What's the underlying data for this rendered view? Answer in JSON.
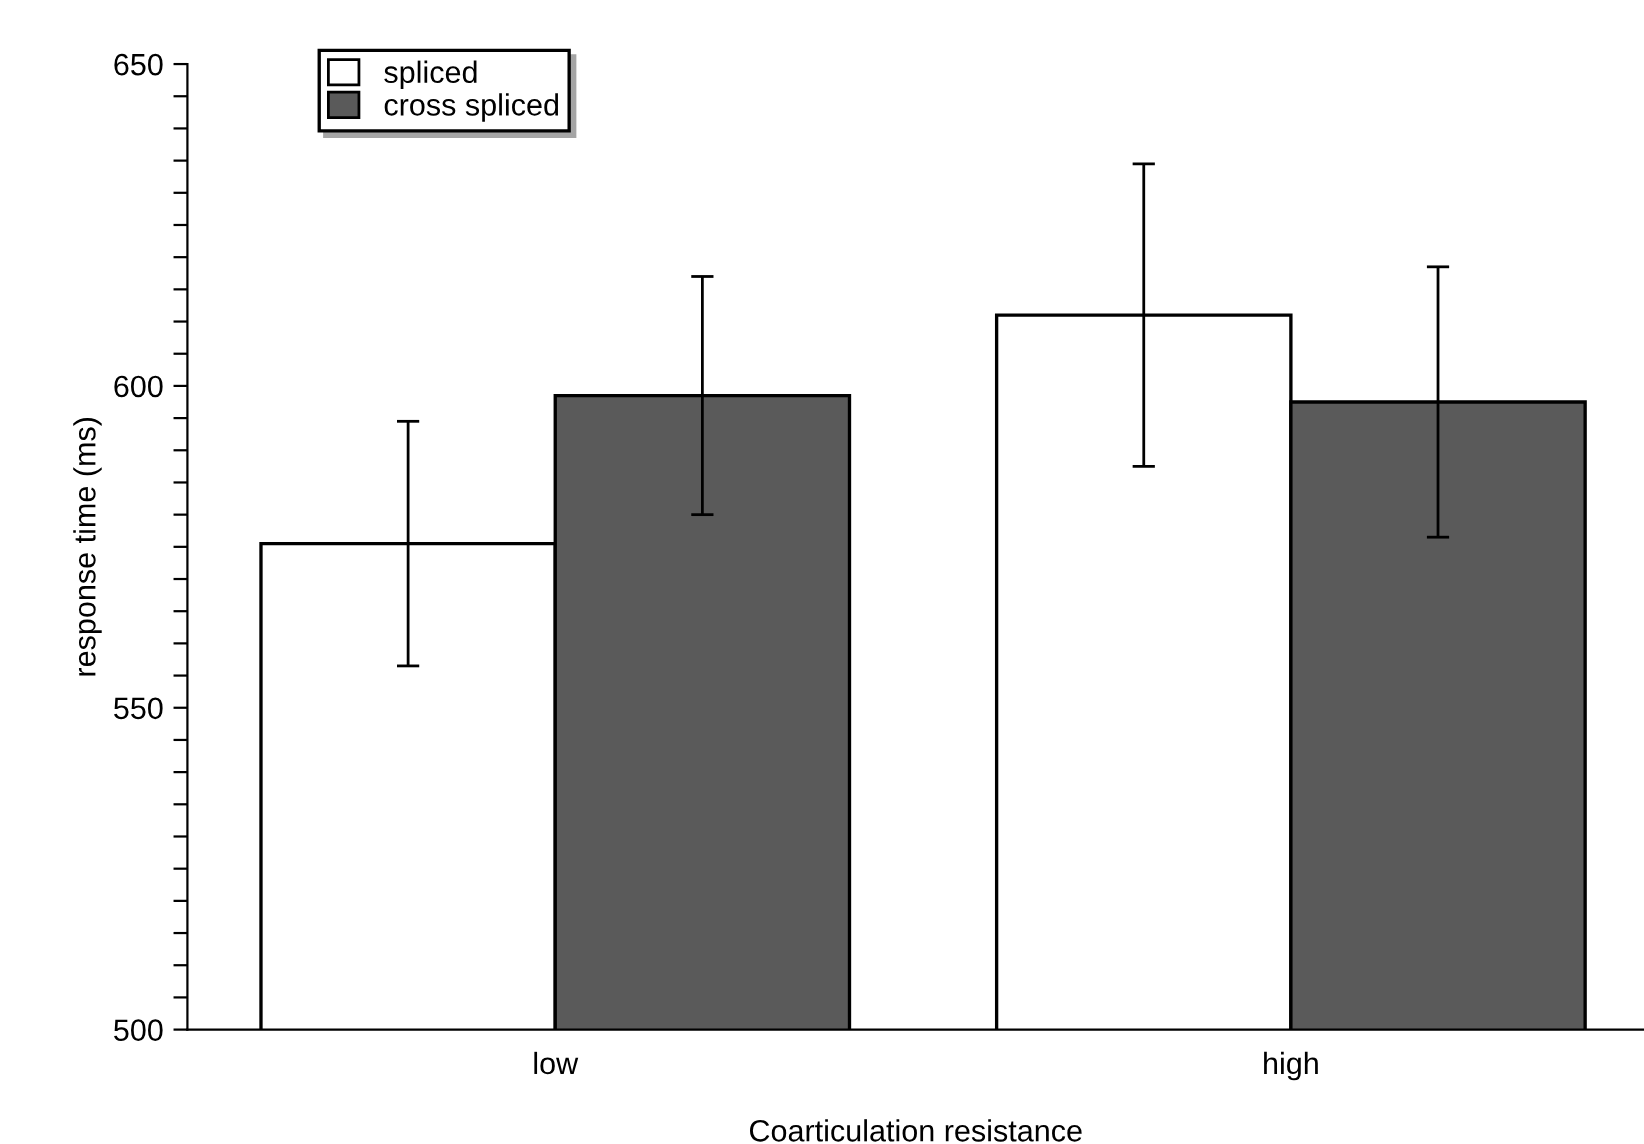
{
  "chart_data": {
    "type": "bar",
    "xlabel": "Coarticulation resistance",
    "ylabel": "response time (ms)",
    "categories": [
      "low",
      "high"
    ],
    "series": [
      {
        "name": "spliced",
        "color": "#ffffff",
        "values": [
          575.5,
          611
        ],
        "errors": [
          19,
          23.5
        ]
      },
      {
        "name": "cross spliced",
        "color": "#5a5a5a",
        "values": [
          598.5,
          597.5
        ],
        "errors": [
          18.5,
          21
        ]
      }
    ],
    "ylim": [
      500,
      650
    ],
    "yticks": [
      500,
      {
        "value": 505,
        "label": null
      },
      {
        "value": 510,
        "label": null
      },
      {
        "value": 515,
        "label": null
      },
      {
        "value": 520,
        "label": null
      },
      {
        "value": 525,
        "label": null
      },
      {
        "value": 530,
        "label": null
      },
      {
        "value": 535,
        "label": null
      },
      {
        "value": 540,
        "label": null
      },
      {
        "value": 545,
        "label": null
      },
      550,
      {
        "value": 555,
        "label": null
      },
      {
        "value": 560,
        "label": null
      },
      {
        "value": 565,
        "label": null
      },
      {
        "value": 570,
        "label": null
      },
      {
        "value": 575,
        "label": null
      },
      {
        "value": 580,
        "label": null
      },
      {
        "value": 585,
        "label": null
      },
      {
        "value": 590,
        "label": null
      },
      {
        "value": 595,
        "label": null
      },
      600,
      {
        "value": 605,
        "label": null
      },
      {
        "value": 610,
        "label": null
      },
      {
        "value": 615,
        "label": null
      },
      {
        "value": 620,
        "label": null
      },
      {
        "value": 625,
        "label": null
      },
      {
        "value": 630,
        "label": null
      },
      {
        "value": 635,
        "label": null
      },
      {
        "value": 640,
        "label": null
      },
      {
        "value": 645,
        "label": null
      },
      650
    ],
    "grid": false,
    "legend": "top left"
  }
}
